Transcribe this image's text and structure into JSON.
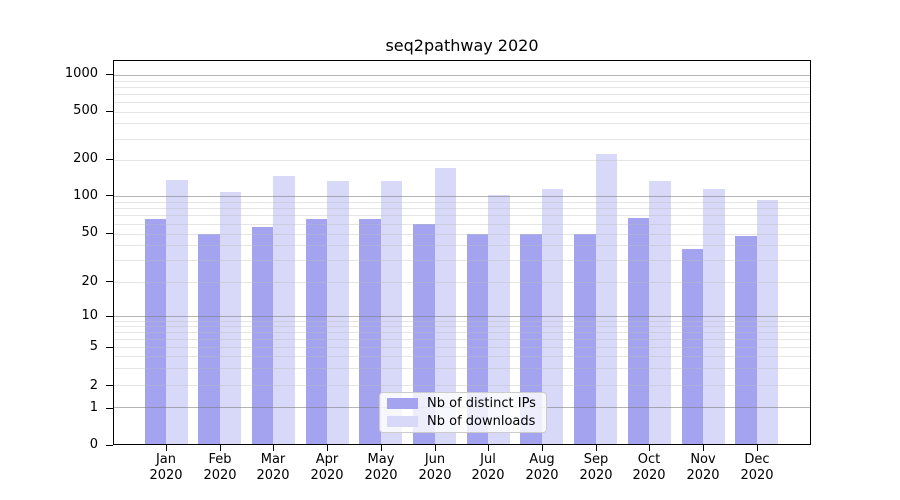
{
  "chart_data": {
    "type": "bar",
    "title": "seq2pathway 2020",
    "xlabel": "",
    "ylabel": "",
    "yscale": "symlog",
    "grid": true,
    "legend_position": "lower center",
    "ylim": [
      0,
      1300
    ],
    "yticks": [
      0,
      1,
      2,
      5,
      10,
      20,
      50,
      100,
      200,
      500,
      1000
    ],
    "months": [
      "Jan",
      "Feb",
      "Mar",
      "Apr",
      "May",
      "Jun",
      "Jul",
      "Aug",
      "Sep",
      "Oct",
      "Nov",
      "Dec"
    ],
    "year": "2020",
    "series": [
      {
        "name": "Nb of distinct IPs",
        "color": "#a3a3ef",
        "values": [
          65,
          50,
          57,
          65,
          65,
          60,
          50,
          50,
          50,
          67,
          37,
          48
        ]
      },
      {
        "name": "Nb of downloads",
        "color": "#d8d8f8",
        "values": [
          137,
          109,
          146,
          135,
          135,
          170,
          102,
          116,
          222,
          133,
          114,
          93
        ]
      }
    ]
  }
}
